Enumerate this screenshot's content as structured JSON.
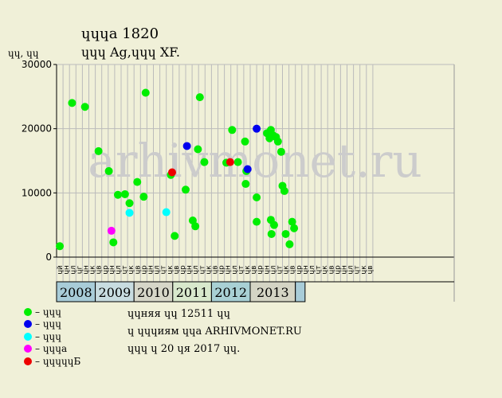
{
  "title": "ɥɥɥа 1820",
  "subtitle": "ɥɥɥ Ag,ɥɥɥ XF.",
  "y_unit": "ɥɥ, ɥɥ",
  "watermark": "arhivmonet.ru",
  "legend": [
    {
      "label": "– ɥɥɥ",
      "color": "#00ee00"
    },
    {
      "label": "– ɥɥɥ",
      "color": "#0000ee"
    },
    {
      "label": "– ɥɥɥ",
      "color": "#00ffff"
    },
    {
      "label": "– ɥɥɥа",
      "color": "#ff00ff"
    },
    {
      "label": "– ɥɥɥɥɥБ",
      "color": "#ee0000"
    }
  ],
  "info": [
    "ɥɥняя ɥɥ 12511 ɥɥ",
    "ɥ ɥɥɥиям ɥɥа ARHIVMONET.RU",
    "ɥɥɥ ɥ 20 ɥя 2017 ɥɥ."
  ],
  "chart_data": {
    "type": "scatter",
    "ylim": [
      0,
      30000
    ],
    "yticks": [
      0,
      10000,
      20000,
      30000
    ],
    "month_labels": [
      "ɥй",
      "ɥн",
      "ɥл",
      "ɥг",
      "ɥн",
      "ɥк",
      "ɥв",
      "ɥр",
      "ɥн",
      "ɥл",
      "ɥт",
      "ɥк",
      "ɥв",
      "ɥр",
      "ɥн",
      "ɥл",
      "ɥт",
      "ɥк",
      "ɥв",
      "ɥр",
      "ɥн",
      "ɥл",
      "ɥт",
      "ɥк",
      "ɥв",
      "ɥр",
      "ɥн",
      "ɥл",
      "ɥт",
      "ɥк",
      "ɥв",
      "ɥр",
      "ɥн",
      "ɥл",
      "ɥт",
      "ɥк",
      "ɥв",
      "ɥр",
      "ɥн",
      "ɥл",
      "ɥт",
      "ɥк",
      "ɥв",
      "ɥр",
      "ɥн",
      "ɥл",
      "ɥт",
      "ɥк",
      "ɥв"
    ],
    "years": [
      {
        "label": "2008",
        "start": 0,
        "end": 6,
        "color": "#a8ccd8"
      },
      {
        "label": "2009",
        "start": 6,
        "end": 12,
        "color": "#c8dce0"
      },
      {
        "label": "2010",
        "start": 12,
        "end": 18,
        "color": "#d6d6c8"
      },
      {
        "label": "2011",
        "start": 18,
        "end": 24,
        "color": "#d8e8cc"
      },
      {
        "label": "2012",
        "start": 24,
        "end": 30,
        "color": "#a8d0d4"
      },
      {
        "label": "2013",
        "start": 30,
        "end": 37,
        "color": "#d4d4c4"
      },
      {
        "label": "",
        "start": 37,
        "end": 38.5,
        "color": "#a8ccd8"
      }
    ],
    "series": [
      {
        "name": "ɥɥɥ",
        "color": "#00ee00",
        "points": [
          [
            0.5,
            1700
          ],
          [
            2.4,
            24000
          ],
          [
            4.4,
            23400
          ],
          [
            6.5,
            16500
          ],
          [
            8.1,
            13400
          ],
          [
            8.8,
            2300
          ],
          [
            9.5,
            9700
          ],
          [
            10.6,
            9800
          ],
          [
            11.3,
            8400
          ],
          [
            12.5,
            11700
          ],
          [
            13.5,
            9400
          ],
          [
            13.8,
            25600
          ],
          [
            17.7,
            12800
          ],
          [
            18.3,
            3300
          ],
          [
            20.0,
            10500
          ],
          [
            21.1,
            5700
          ],
          [
            21.5,
            4800
          ],
          [
            21.9,
            16800
          ],
          [
            22.2,
            24900
          ],
          [
            22.9,
            14800
          ],
          [
            26.3,
            14700
          ],
          [
            27.2,
            19800
          ],
          [
            28.1,
            14800
          ],
          [
            29.2,
            18000
          ],
          [
            29.3,
            11400
          ],
          [
            29.4,
            13400
          ],
          [
            31.0,
            9300
          ],
          [
            31.0,
            5500
          ],
          [
            32.6,
            19300
          ],
          [
            33.0,
            18500
          ],
          [
            33.2,
            19800
          ],
          [
            33.2,
            5800
          ],
          [
            33.3,
            3600
          ],
          [
            33.5,
            19000
          ],
          [
            33.7,
            5000
          ],
          [
            34.0,
            18700
          ],
          [
            34.3,
            18000
          ],
          [
            34.8,
            16400
          ],
          [
            35.0,
            11100
          ],
          [
            35.3,
            10300
          ],
          [
            35.5,
            3600
          ],
          [
            36.1,
            2000
          ],
          [
            36.5,
            5500
          ],
          [
            36.8,
            4500
          ]
        ]
      },
      {
        "name": "ɥɥɥ",
        "color": "#0000ee",
        "points": [
          [
            20.2,
            17300
          ],
          [
            29.6,
            13700
          ],
          [
            31.0,
            20000
          ]
        ]
      },
      {
        "name": "ɥɥɥ",
        "color": "#00ffff",
        "points": [
          [
            11.3,
            6900
          ],
          [
            17.0,
            7000
          ]
        ]
      },
      {
        "name": "ɥɥɥа",
        "color": "#ff00ff",
        "points": [
          [
            8.5,
            4100
          ]
        ]
      },
      {
        "name": "ɥɥɥɥɥБ",
        "color": "#ee0000",
        "points": [
          [
            17.9,
            13200
          ],
          [
            26.9,
            14800
          ]
        ]
      }
    ]
  }
}
